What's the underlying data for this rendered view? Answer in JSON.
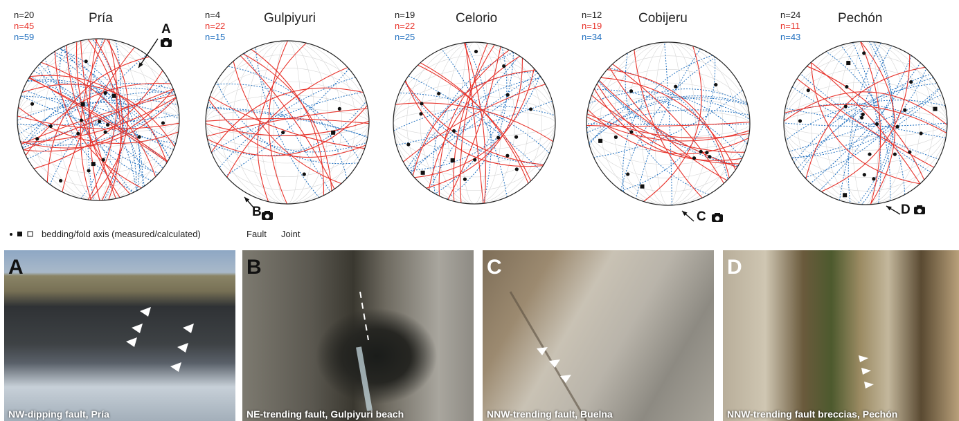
{
  "sites": [
    {
      "name": "Pría",
      "counts": {
        "bedding": "n=20",
        "fault": "n=45",
        "joint": "n=59"
      }
    },
    {
      "name": "Gulpiyuri",
      "counts": {
        "bedding": "n=4",
        "fault": "n=22",
        "joint": "n=15"
      }
    },
    {
      "name": "Celorio",
      "counts": {
        "bedding": "n=19",
        "fault": "n=22",
        "joint": "n=25"
      }
    },
    {
      "name": "Cobijeru",
      "counts": {
        "bedding": "n=12",
        "fault": "n=19",
        "joint": "n=34"
      }
    },
    {
      "name": "Pechón",
      "counts": {
        "bedding": "n=24",
        "fault": "n=11",
        "joint": "n=43"
      }
    }
  ],
  "callouts": [
    "A",
    "B",
    "C",
    "D"
  ],
  "legend": {
    "bedding": "bedding/fold axis (measured/calculated)",
    "fault": "Fault",
    "joint": "Joint"
  },
  "photos": [
    {
      "letter": "A",
      "caption": "NW-dipping fault, Pría"
    },
    {
      "letter": "B",
      "caption": "NE-trending fault, Gulpiyuri beach"
    },
    {
      "letter": "C",
      "caption": "NNW-trending fault, Buelna"
    },
    {
      "letter": "D",
      "caption": "NNW-trending fault breccias, Pechón"
    }
  ],
  "colors": {
    "fault": "#e8322a",
    "joint": "#1f6fbf",
    "bedding": "#111111",
    "grid": "#d6d6d6"
  },
  "icons": [
    "camera-icon",
    "arrow-icon",
    "pole-dot-icon",
    "pole-square-icon"
  ]
}
